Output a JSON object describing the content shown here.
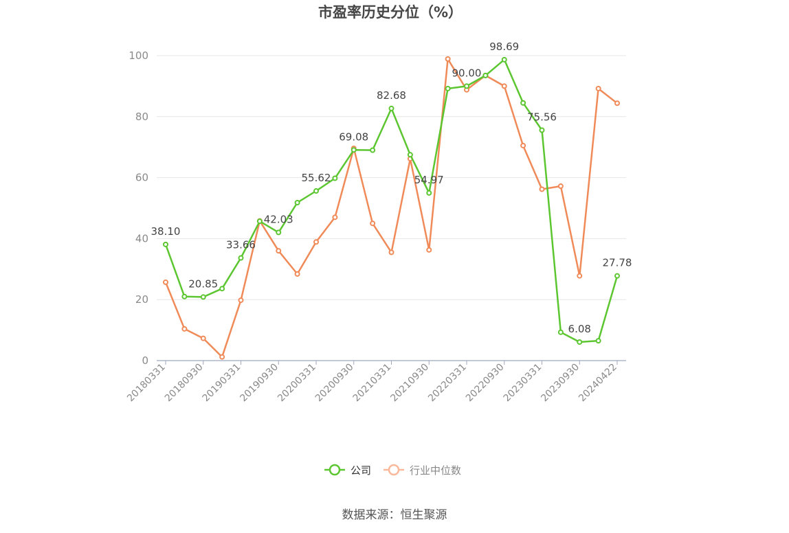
{
  "chart_data": {
    "type": "line",
    "title": "市盈率历史分位（%）",
    "source": "数据来源：恒生聚源",
    "ylim": [
      0,
      100
    ],
    "yticks": [
      "0",
      "20",
      "40",
      "60",
      "80",
      "100"
    ],
    "xtick_labels": [
      "20180331",
      "20180930",
      "20190331",
      "20190930",
      "20200331",
      "20200930",
      "20210331",
      "20210930",
      "20220331",
      "20220930",
      "20230331",
      "20230930",
      "20240422"
    ],
    "x": [
      "20180331",
      "20180630",
      "20180930",
      "20181231",
      "20190331",
      "20190630",
      "20190930",
      "20191231",
      "20200331",
      "20200630",
      "20200930",
      "20201231",
      "20210331",
      "20210630",
      "20210930",
      "20211231",
      "20220331",
      "20220630",
      "20220930",
      "20221231",
      "20230331",
      "20230630",
      "20230930",
      "20231231",
      "20240422"
    ],
    "series": [
      {
        "name": "公司",
        "color": "#5cc631",
        "values": [
          38.1,
          21.0,
          20.85,
          23.6,
          33.66,
          45.7,
          42.03,
          51.8,
          55.62,
          59.8,
          69.08,
          69.0,
          82.68,
          67.5,
          54.97,
          89.2,
          90.0,
          93.5,
          98.69,
          84.5,
          75.56,
          9.3,
          6.08,
          6.5,
          27.78
        ],
        "labels": [
          "38.10",
          null,
          "20.85",
          null,
          "33.66",
          null,
          "42.03",
          null,
          "55.62",
          null,
          "69.08",
          null,
          "82.68",
          null,
          "54.97",
          null,
          "90.00",
          null,
          "98.69",
          null,
          "75.56",
          null,
          "6.08",
          null,
          "27.78"
        ]
      },
      {
        "name": "行业中位数",
        "color": "#f08a58",
        "values": [
          25.7,
          10.4,
          7.3,
          1.2,
          19.8,
          45.8,
          36.0,
          28.4,
          38.9,
          47.0,
          69.6,
          45.0,
          35.5,
          66.2,
          36.3,
          98.9,
          88.8,
          93.5,
          90.0,
          70.5,
          56.2,
          57.2,
          27.8,
          89.2,
          84.4
        ],
        "labels": []
      }
    ],
    "legend": {
      "placement": "bottom-center",
      "items": [
        "公司",
        "行业中位数"
      ]
    },
    "grid": true
  }
}
